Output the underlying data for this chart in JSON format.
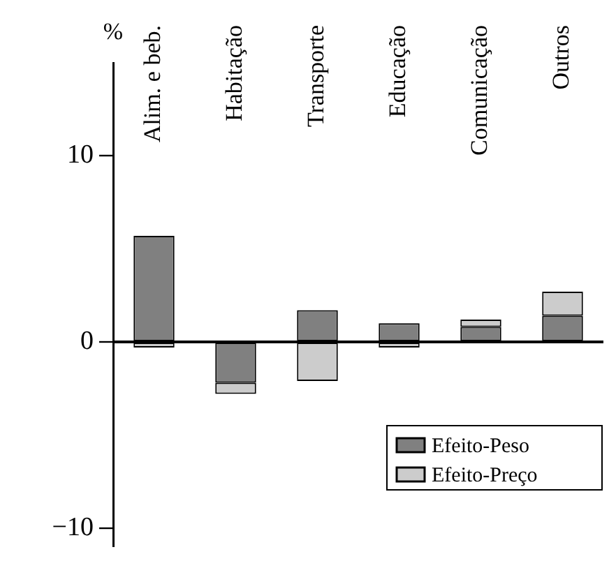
{
  "chart_data": {
    "type": "bar",
    "stacked": true,
    "ylabel": "%",
    "categories": [
      "Alim. e beb.",
      "Habitação",
      "Transporte",
      "Educação",
      "Comunicação",
      "Outros"
    ],
    "series": [
      {
        "name": "Efeito-Peso",
        "color": "#808080",
        "values": [
          5.7,
          -2.2,
          1.7,
          1.0,
          0.8,
          1.4
        ]
      },
      {
        "name": "Efeito-Preço",
        "color": "#cccccc",
        "values": [
          -0.3,
          -0.6,
          -2.1,
          -0.3,
          0.4,
          1.3
        ]
      }
    ],
    "ylim": [
      -11,
      15
    ],
    "yticks": [
      {
        "value": -10,
        "label": "−10"
      },
      0,
      10
    ],
    "ref_lines": [
      {
        "axis": "y",
        "value": 0,
        "color": "#000000"
      }
    ],
    "grid": false,
    "legend": "bottom right"
  }
}
